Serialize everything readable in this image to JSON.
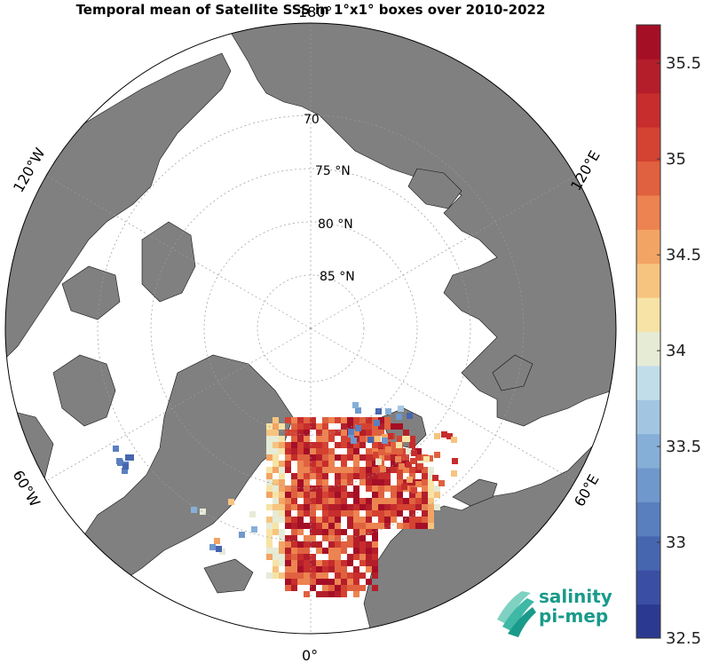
{
  "title": "Temporal mean of Satellite SSS in 1°x1° boxes over 2010-2022",
  "map": {
    "projection": "north-polar-stereographic",
    "latitude_labels": [
      "70",
      "75 °N",
      "80 °N",
      "85 °N"
    ],
    "longitude_labels": {
      "top": "180°",
      "bottom": "0°",
      "upper_left": "120°W",
      "lower_left": "60°W",
      "upper_right": "120°E",
      "lower_right": "60°E"
    },
    "colors": {
      "land": "#808080",
      "ocean_no_data": "#ffffff"
    }
  },
  "colorbar": {
    "min": 32.5,
    "max": 35.7,
    "tick_labels": [
      "35.5",
      "35",
      "34.5",
      "34",
      "33.5",
      "33",
      "32.5"
    ],
    "colors": [
      "#2b3990",
      "#3a4fa3",
      "#4666b0",
      "#5a7fbf",
      "#6f98cc",
      "#86afd8",
      "#a2c6e2",
      "#c1dde9",
      "#e6ebd6",
      "#f7e3a6",
      "#f6c47f",
      "#f2a464",
      "#ec8350",
      "#e0613f",
      "#d44232",
      "#c62d2c",
      "#b41e2a",
      "#a50f26"
    ]
  },
  "logo": {
    "line1": "salinity",
    "line2": "pi-mep"
  }
}
